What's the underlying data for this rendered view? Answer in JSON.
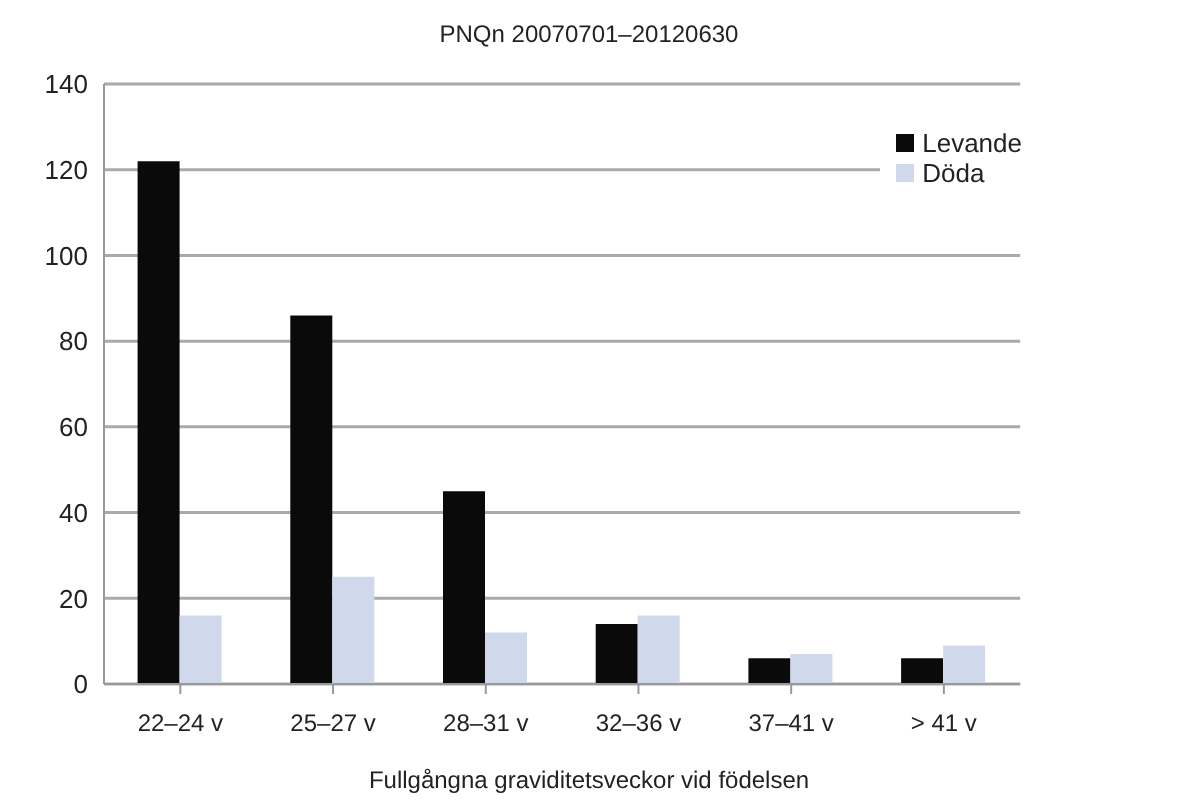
{
  "chart_data": {
    "type": "bar",
    "title": "PNQn 20070701–20120630",
    "xlabel": "Fullgångna graviditetsveckor vid födelsen",
    "categories": [
      "22–24 v",
      "25–27 v",
      "28–31 v",
      "32–36 v",
      "37–41 v",
      "> 41 v"
    ],
    "series": [
      {
        "name": "Levande",
        "color": "#0a0a0a",
        "values": [
          122,
          86,
          45,
          14,
          6,
          6
        ]
      },
      {
        "name": "Döda",
        "color": "#d0d9ec",
        "values": [
          16,
          25,
          12,
          16,
          7,
          9
        ]
      }
    ],
    "ylim": [
      0,
      140
    ],
    "yticks": [
      0,
      20,
      40,
      60,
      80,
      100,
      120,
      140
    ],
    "grid": "y",
    "legend": "top right"
  }
}
